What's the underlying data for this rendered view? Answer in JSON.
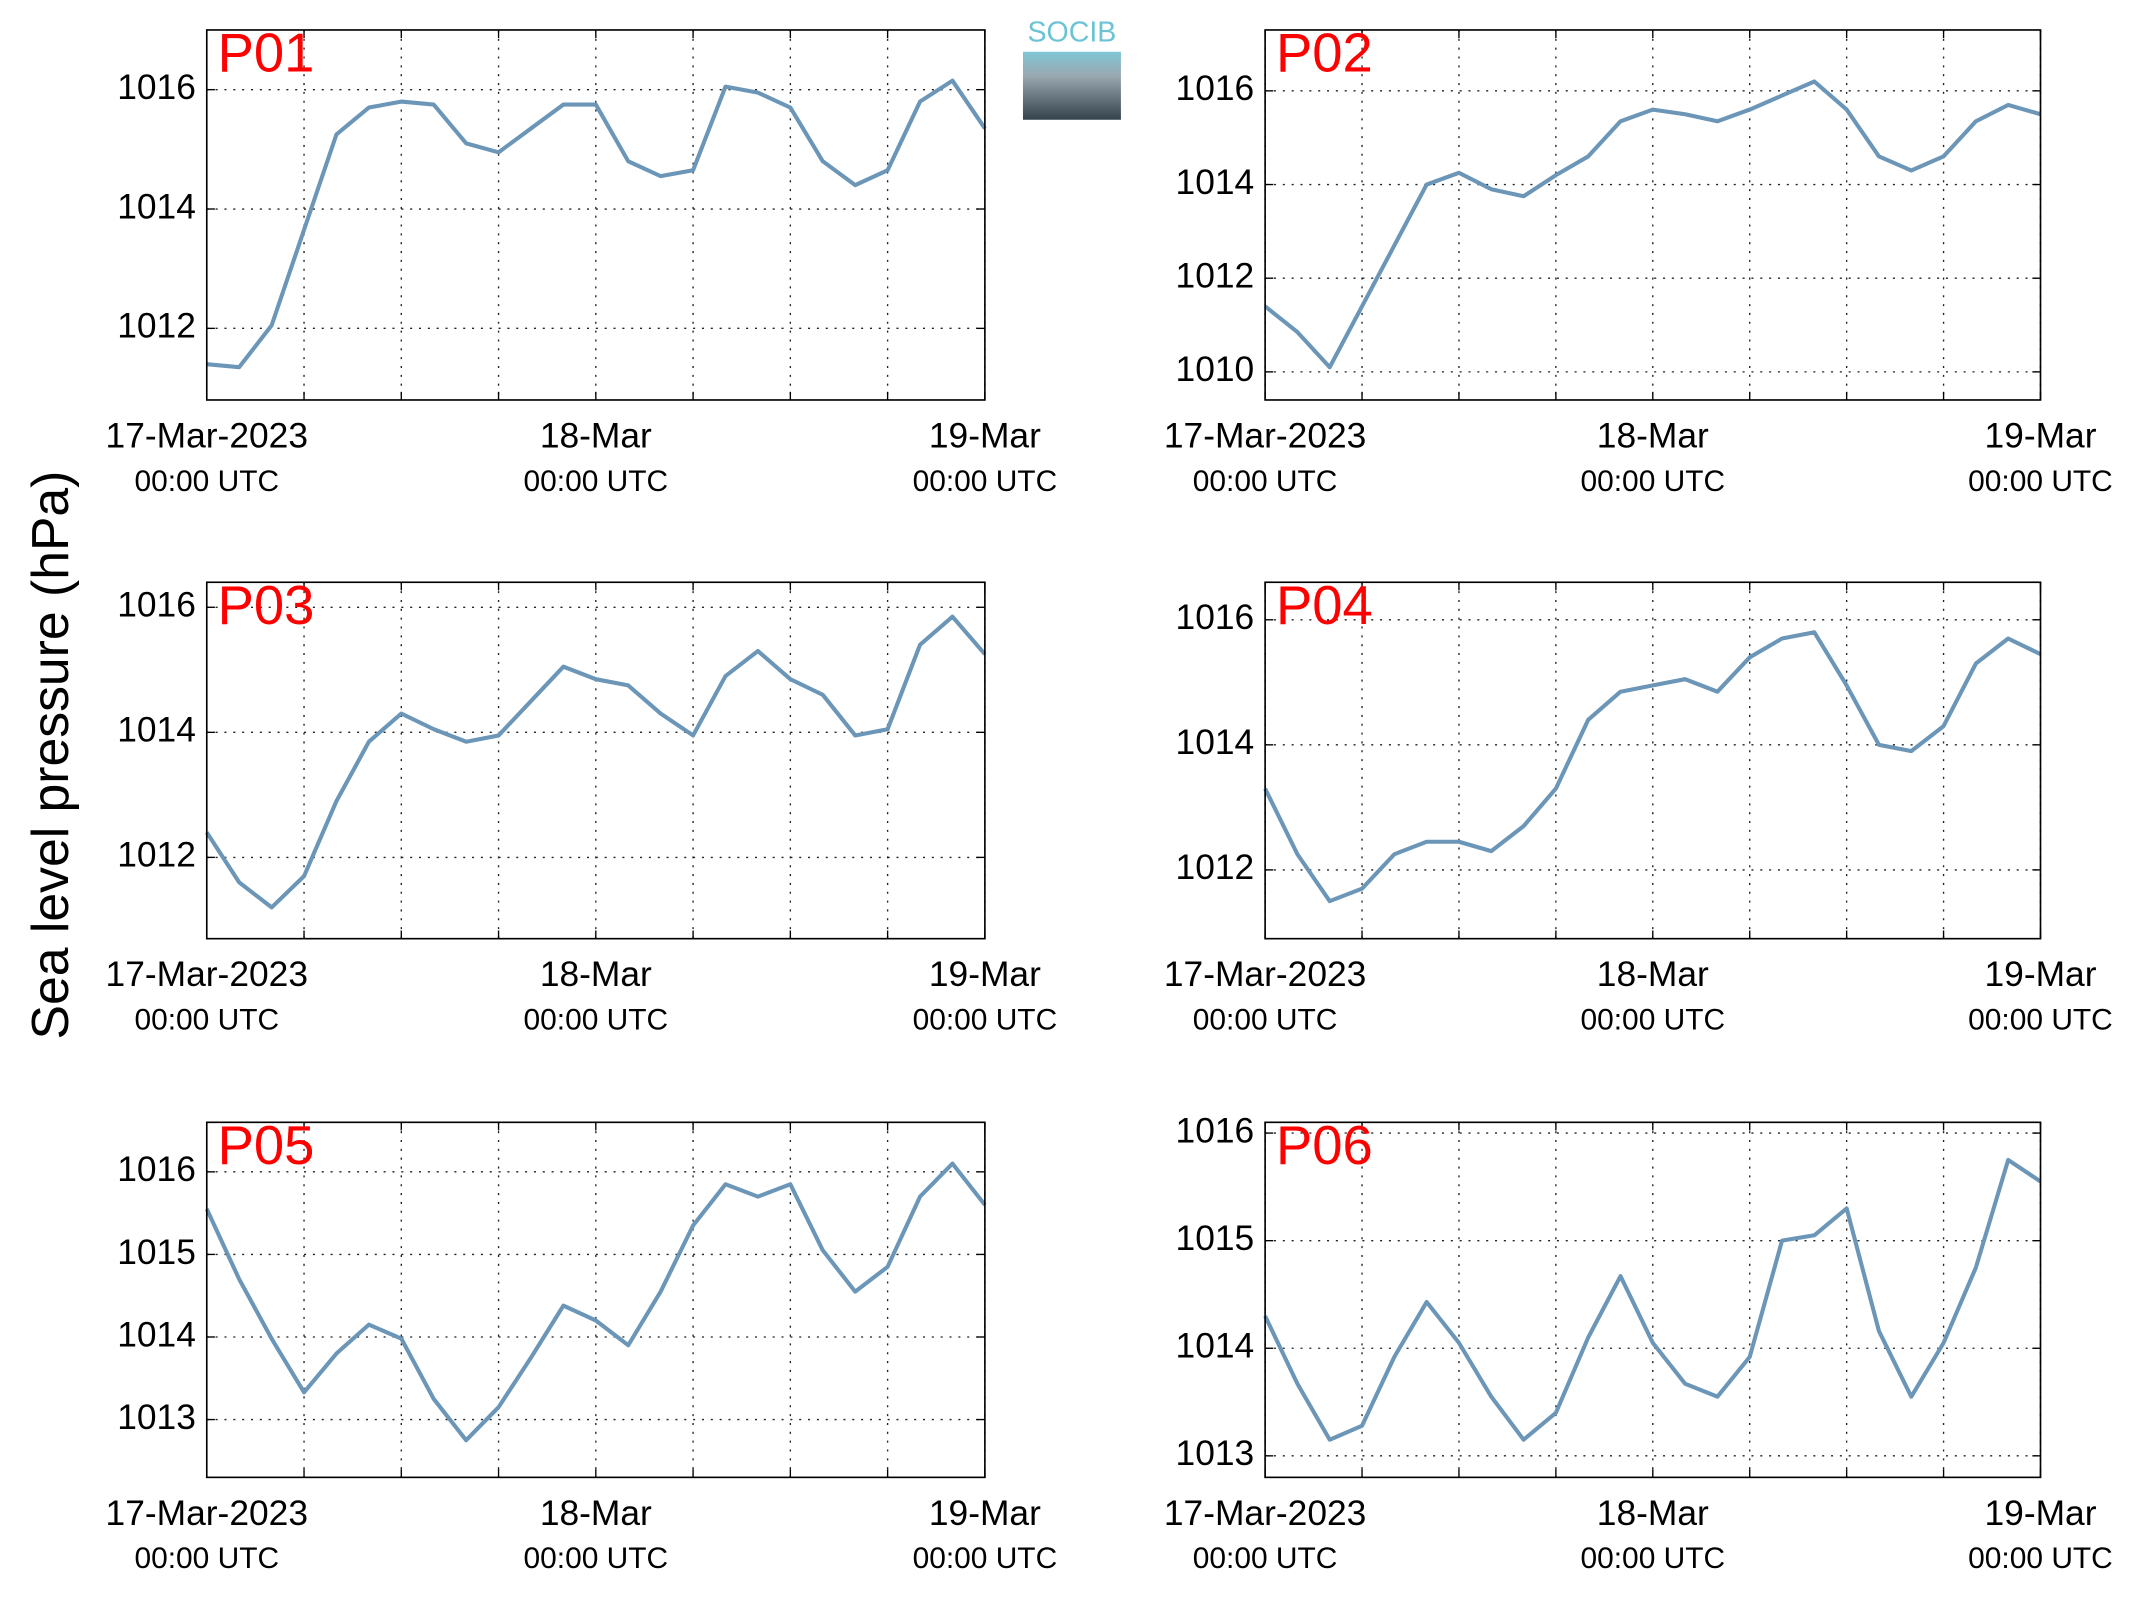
{
  "ylabel": "Sea level pressure (hPa)",
  "logo": "SOCIB",
  "chart_data": [
    {
      "type": "line",
      "title": "P01",
      "color": "#6b96b8",
      "grid": true,
      "x": [
        0,
        2,
        4,
        6,
        8,
        10,
        12,
        14,
        16,
        18,
        20,
        22,
        24,
        26,
        28,
        30,
        32,
        34,
        36,
        38,
        40,
        42,
        44,
        46,
        48
      ],
      "values": [
        1011.4,
        1011.35,
        1012.05,
        1013.65,
        1015.25,
        1015.7,
        1015.8,
        1015.75,
        1015.1,
        1014.95,
        1015.35,
        1015.75,
        1015.75,
        1014.8,
        1014.55,
        1014.65,
        1016.05,
        1015.95,
        1015.7,
        1014.8,
        1014.4,
        1014.65,
        1015.8,
        1016.15,
        1015.35
      ],
      "xlim": [
        0,
        48
      ],
      "xticks": [
        {
          "value": 0,
          "label": [
            "17-Mar-2023",
            "00:00 UTC"
          ]
        },
        {
          "value": 24,
          "label": [
            "18-Mar",
            "00:00 UTC"
          ]
        },
        {
          "value": 48,
          "label": [
            "19-Mar",
            "00:00 UTC"
          ]
        }
      ],
      "xminor": [
        6,
        12,
        18,
        30,
        36,
        42
      ],
      "ylim": [
        1010.8,
        1017.0
      ],
      "yticks": [
        1012,
        1014,
        1016
      ]
    },
    {
      "type": "line",
      "title": "P02",
      "color": "#6b96b8",
      "grid": true,
      "x": [
        0,
        2,
        4,
        6,
        8,
        10,
        12,
        14,
        16,
        18,
        20,
        22,
        24,
        26,
        28,
        30,
        32,
        34,
        36,
        38,
        40,
        42,
        44,
        46,
        48
      ],
      "values": [
        1011.4,
        1010.85,
        1010.1,
        1011.4,
        1012.7,
        1014.0,
        1014.25,
        1013.9,
        1013.75,
        1014.2,
        1014.6,
        1015.35,
        1015.6,
        1015.5,
        1015.35,
        1015.6,
        1015.9,
        1016.2,
        1015.6,
        1014.6,
        1014.3,
        1014.6,
        1015.35,
        1015.7,
        1015.5
      ],
      "xlim": [
        0,
        48
      ],
      "xticks": [
        {
          "value": 0,
          "label": [
            "17-Mar-2023",
            "00:00 UTC"
          ]
        },
        {
          "value": 24,
          "label": [
            "18-Mar",
            "00:00 UTC"
          ]
        },
        {
          "value": 48,
          "label": [
            "19-Mar",
            "00:00 UTC"
          ]
        }
      ],
      "xminor": [
        6,
        12,
        18,
        30,
        36,
        42
      ],
      "ylim": [
        1009.4,
        1017.3
      ],
      "yticks": [
        1010,
        1012,
        1014,
        1016
      ]
    },
    {
      "type": "line",
      "title": "P03",
      "color": "#6b96b8",
      "grid": true,
      "x": [
        0,
        2,
        4,
        6,
        8,
        10,
        12,
        14,
        16,
        18,
        20,
        22,
        24,
        26,
        28,
        30,
        32,
        34,
        36,
        38,
        40,
        42,
        44,
        46,
        48
      ],
      "values": [
        1012.4,
        1011.6,
        1011.2,
        1011.7,
        1012.9,
        1013.85,
        1014.3,
        1014.05,
        1013.85,
        1013.95,
        1014.5,
        1015.05,
        1014.85,
        1014.75,
        1014.3,
        1013.95,
        1014.9,
        1015.3,
        1014.85,
        1014.6,
        1013.95,
        1014.05,
        1015.4,
        1015.85,
        1015.25
      ],
      "xlim": [
        0,
        48
      ],
      "xticks": [
        {
          "value": 0,
          "label": [
            "17-Mar-2023",
            "00:00 UTC"
          ]
        },
        {
          "value": 24,
          "label": [
            "18-Mar",
            "00:00 UTC"
          ]
        },
        {
          "value": 48,
          "label": [
            "19-Mar",
            "00:00 UTC"
          ]
        }
      ],
      "xminor": [
        6,
        12,
        18,
        30,
        36,
        42
      ],
      "ylim": [
        1010.7,
        1016.4
      ],
      "yticks": [
        1012,
        1014,
        1016
      ]
    },
    {
      "type": "line",
      "title": "P04",
      "color": "#6b96b8",
      "grid": true,
      "x": [
        0,
        2,
        4,
        6,
        8,
        10,
        12,
        14,
        16,
        18,
        20,
        22,
        24,
        26,
        28,
        30,
        32,
        34,
        36,
        38,
        40,
        42,
        44,
        46,
        48
      ],
      "values": [
        1013.3,
        1012.25,
        1011.5,
        1011.7,
        1012.25,
        1012.45,
        1012.45,
        1012.3,
        1012.7,
        1013.3,
        1014.4,
        1014.85,
        1014.95,
        1015.05,
        1014.85,
        1015.4,
        1015.7,
        1015.8,
        1014.95,
        1014.0,
        1013.9,
        1014.3,
        1015.3,
        1015.7,
        1015.45
      ],
      "xlim": [
        0,
        48
      ],
      "xticks": [
        {
          "value": 0,
          "label": [
            "17-Mar-2023",
            "00:00 UTC"
          ]
        },
        {
          "value": 24,
          "label": [
            "18-Mar",
            "00:00 UTC"
          ]
        },
        {
          "value": 48,
          "label": [
            "19-Mar",
            "00:00 UTC"
          ]
        }
      ],
      "xminor": [
        6,
        12,
        18,
        30,
        36,
        42
      ],
      "ylim": [
        1010.9,
        1016.6
      ],
      "yticks": [
        1012,
        1014,
        1016
      ]
    },
    {
      "type": "line",
      "title": "P05",
      "color": "#6b96b8",
      "grid": true,
      "x": [
        0,
        2,
        4,
        6,
        8,
        10,
        12,
        14,
        16,
        18,
        20,
        22,
        24,
        26,
        28,
        30,
        32,
        34,
        36,
        38,
        40,
        42,
        44,
        46,
        48
      ],
      "values": [
        1015.55,
        1014.7,
        1013.98,
        1013.33,
        1013.8,
        1014.15,
        1013.98,
        1013.25,
        1012.75,
        1013.15,
        1013.75,
        1014.38,
        1014.2,
        1013.9,
        1014.55,
        1015.35,
        1015.85,
        1015.7,
        1015.85,
        1015.05,
        1014.55,
        1014.85,
        1015.7,
        1016.1,
        1015.6
      ],
      "xlim": [
        0,
        48
      ],
      "xticks": [
        {
          "value": 0,
          "label": [
            "17-Mar-2023",
            "00:00 UTC"
          ]
        },
        {
          "value": 24,
          "label": [
            "18-Mar",
            "00:00 UTC"
          ]
        },
        {
          "value": 48,
          "label": [
            "19-Mar",
            "00:00 UTC"
          ]
        }
      ],
      "xminor": [
        6,
        12,
        18,
        30,
        36,
        42
      ],
      "ylim": [
        1012.3,
        1016.6
      ],
      "yticks": [
        1013,
        1014,
        1015,
        1016
      ]
    },
    {
      "type": "line",
      "title": "P06",
      "color": "#6b96b8",
      "grid": true,
      "x": [
        0,
        2,
        4,
        6,
        8,
        10,
        12,
        14,
        16,
        18,
        20,
        22,
        24,
        26,
        28,
        30,
        32,
        34,
        36,
        38,
        40,
        42,
        44,
        46,
        48
      ],
      "values": [
        1014.3,
        1013.67,
        1013.15,
        1013.28,
        1013.92,
        1014.43,
        1014.05,
        1013.55,
        1013.15,
        1013.4,
        1014.1,
        1014.67,
        1014.05,
        1013.67,
        1013.55,
        1013.92,
        1015.0,
        1015.05,
        1015.3,
        1014.16,
        1013.55,
        1014.05,
        1014.75,
        1015.75,
        1015.55
      ],
      "xlim": [
        0,
        48
      ],
      "xticks": [
        {
          "value": 0,
          "label": [
            "17-Mar-2023",
            "00:00 UTC"
          ]
        },
        {
          "value": 24,
          "label": [
            "18-Mar",
            "00:00 UTC"
          ]
        },
        {
          "value": 48,
          "label": [
            "19-Mar",
            "00:00 UTC"
          ]
        }
      ],
      "xminor": [
        6,
        12,
        18,
        30,
        36,
        42
      ],
      "ylim": [
        1012.8,
        1016.1
      ],
      "yticks": [
        1013,
        1014,
        1015,
        1016
      ]
    }
  ]
}
